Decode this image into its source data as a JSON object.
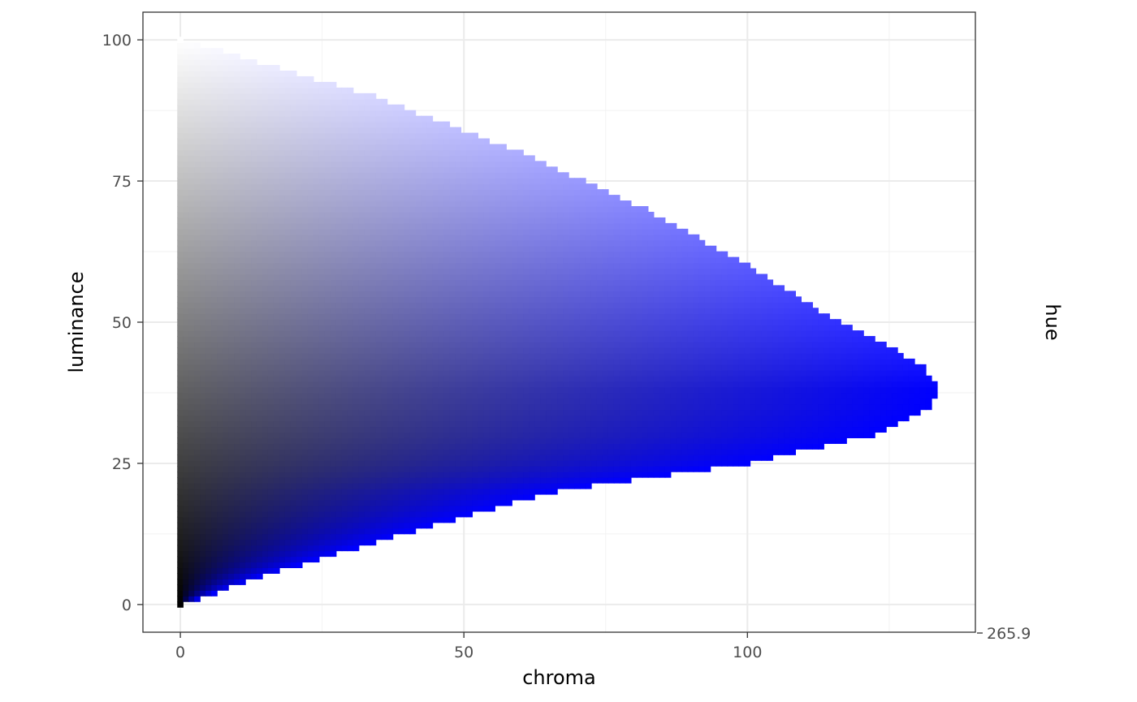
{
  "chart_data": {
    "type": "heatmap",
    "xlabel": "chroma",
    "ylabel": "luminance",
    "side_label": "hue",
    "hue_value": "265.9",
    "x_ticks": [
      "0",
      "50",
      "100"
    ],
    "y_ticks": [
      "0",
      "25",
      "50",
      "75",
      "100"
    ],
    "xlim": [
      -6.6,
      140.2
    ],
    "ylim": [
      -4.9,
      104.9
    ],
    "grid": true,
    "hue": 265.9,
    "boundary": [
      {
        "l": 0,
        "max_chroma": 0.6
      },
      {
        "l": 5,
        "max_chroma": 14.5
      },
      {
        "l": 10,
        "max_chroma": 31
      },
      {
        "l": 15,
        "max_chroma": 48
      },
      {
        "l": 20,
        "max_chroma": 66
      },
      {
        "l": 25,
        "max_chroma": 100
      },
      {
        "l": 30,
        "max_chroma": 122
      },
      {
        "l": 35,
        "max_chroma": 132
      },
      {
        "l": 38,
        "max_chroma": 133.8
      },
      {
        "l": 42,
        "max_chroma": 131
      },
      {
        "l": 45,
        "max_chroma": 126
      },
      {
        "l": 50,
        "max_chroma": 116
      },
      {
        "l": 60,
        "max_chroma": 100
      },
      {
        "l": 70,
        "max_chroma": 82
      },
      {
        "l": 80,
        "max_chroma": 60
      },
      {
        "l": 90,
        "max_chroma": 34
      },
      {
        "l": 100,
        "max_chroma": 0.5
      }
    ],
    "colors": {
      "low": "#000000",
      "high": "#ffffff",
      "blue": "#0000ff",
      "grid": "#ebebeb",
      "border": "#333333"
    }
  }
}
